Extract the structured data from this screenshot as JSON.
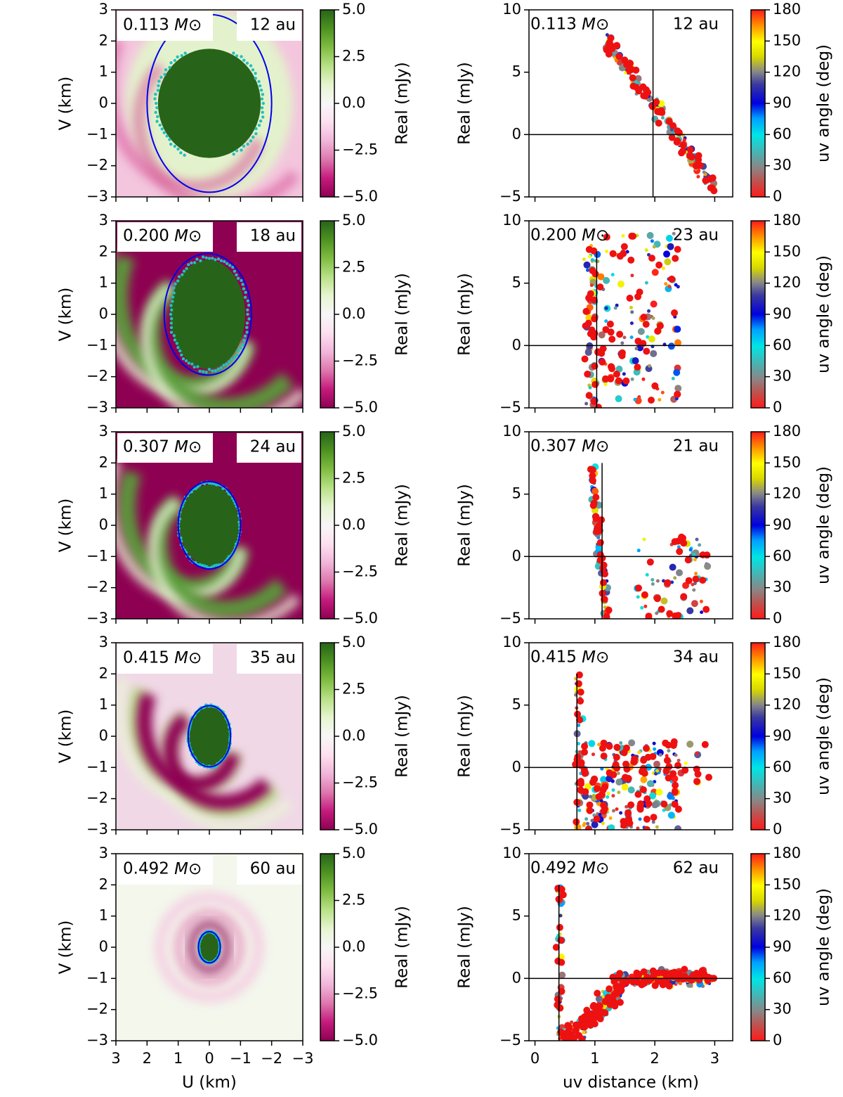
{
  "figure": {
    "left_xlabel": "U (km)",
    "left_ylabel": "V (km)",
    "left_cbar_label": "Real (mJy)",
    "right_xlabel": "uv distance (km)",
    "right_ylabel": "Real (mJy)",
    "right_cbar_label": "uv angle (deg)",
    "left_xticks": [
      "3",
      "2",
      "1",
      "0",
      "−1",
      "−2",
      "−3"
    ],
    "left_yticks": [
      "3",
      "2",
      "1",
      "0",
      "−1",
      "−2",
      "−3"
    ],
    "left_cbar_ticks": [
      "5.0",
      "2.5",
      "0.0",
      "−2.5",
      "−5.0"
    ],
    "right_xticks": [
      "0",
      "1",
      "2",
      "3"
    ],
    "right_yticks": [
      "10",
      "5",
      "0",
      "−5"
    ],
    "right_cbar_ticks": [
      "180",
      "150",
      "120",
      "90",
      "60",
      "30",
      "0"
    ],
    "colors": {
      "positive": "#276419",
      "negative": "#8e0152",
      "neutral": "#f7f7f7",
      "ellipse": "#0000ee",
      "points_cyan": "#20c0c0"
    }
  },
  "chart_data": [
    {
      "type": "heatmap",
      "row": 0,
      "mass_label": "0.113",
      "unit": "M⊙",
      "radius_label": "12 au",
      "ellipse": {
        "cx": 0.0,
        "cy": 0.0,
        "a": 2.0,
        "b": 2.85
      },
      "core": {
        "a": 1.65,
        "b": 1.75
      },
      "spiral": "weak",
      "xlim": [
        3,
        -3
      ],
      "ylim": [
        -3,
        3
      ],
      "clim": [
        -5,
        5
      ]
    },
    {
      "type": "scatter",
      "row": 0,
      "mass_label": "0.113",
      "unit": "M⊙",
      "radius_label": "12 au",
      "vline": 1.97,
      "xlim": [
        -0.1,
        3.3
      ],
      "ylim": [
        -5,
        10
      ]
    },
    {
      "type": "heatmap",
      "row": 1,
      "mass_label": "0.200",
      "unit": "M⊙",
      "radius_label": "18 au",
      "ellipse": {
        "cx": -0.05,
        "cy": 0.0,
        "a": 1.4,
        "b": 1.95
      },
      "core": {
        "a": 1.2,
        "b": 1.75
      },
      "spiral": "strong",
      "xlim": [
        3,
        -3
      ],
      "ylim": [
        -3,
        3
      ],
      "clim": [
        -5,
        5
      ]
    },
    {
      "type": "scatter",
      "row": 1,
      "mass_label": "0.200",
      "unit": "M⊙",
      "radius_label": "23 au",
      "vline": 1.03,
      "xlim": [
        -0.1,
        3.3
      ],
      "ylim": [
        -5,
        10
      ]
    },
    {
      "type": "heatmap",
      "row": 2,
      "mass_label": "0.307",
      "unit": "M⊙",
      "radius_label": "24 au",
      "ellipse": {
        "cx": 0.0,
        "cy": 0.0,
        "a": 1.0,
        "b": 1.4
      },
      "core": {
        "a": 0.95,
        "b": 1.3
      },
      "spiral": "strong",
      "xlim": [
        3,
        -3
      ],
      "ylim": [
        -3,
        3
      ],
      "clim": [
        -5,
        5
      ]
    },
    {
      "type": "scatter",
      "row": 2,
      "mass_label": "0.307",
      "unit": "M⊙",
      "radius_label": "21 au",
      "vline": 1.12,
      "xlim": [
        -0.1,
        3.3
      ],
      "ylim": [
        -5,
        10
      ]
    },
    {
      "type": "heatmap",
      "row": 3,
      "mass_label": "0.415",
      "unit": "M⊙",
      "radius_label": "35 au",
      "ellipse": {
        "cx": 0.0,
        "cy": 0.0,
        "a": 0.68,
        "b": 0.98
      },
      "core": {
        "a": 0.65,
        "b": 0.95
      },
      "spiral": "medium",
      "xlim": [
        3,
        -3
      ],
      "ylim": [
        -3,
        3
      ],
      "clim": [
        -5,
        5
      ]
    },
    {
      "type": "scatter",
      "row": 3,
      "mass_label": "0.415",
      "unit": "M⊙",
      "radius_label": "34 au",
      "vline": 0.7,
      "xlim": [
        -0.1,
        3.3
      ],
      "ylim": [
        -5,
        10
      ]
    },
    {
      "type": "heatmap",
      "row": 4,
      "mass_label": "0.492",
      "unit": "M⊙",
      "radius_label": "60 au",
      "ellipse": {
        "cx": 0.0,
        "cy": 0.0,
        "a": 0.35,
        "b": 0.5
      },
      "core": {
        "a": 0.33,
        "b": 0.48
      },
      "spiral": "faint",
      "xlim": [
        3,
        -3
      ],
      "ylim": [
        -3,
        3
      ],
      "clim": [
        -5,
        5
      ]
    },
    {
      "type": "scatter",
      "row": 4,
      "mass_label": "0.492",
      "unit": "M⊙",
      "radius_label": "62 au",
      "vline": 0.4,
      "xlim": [
        -0.1,
        3.3
      ],
      "ylim": [
        -5,
        10
      ]
    }
  ]
}
